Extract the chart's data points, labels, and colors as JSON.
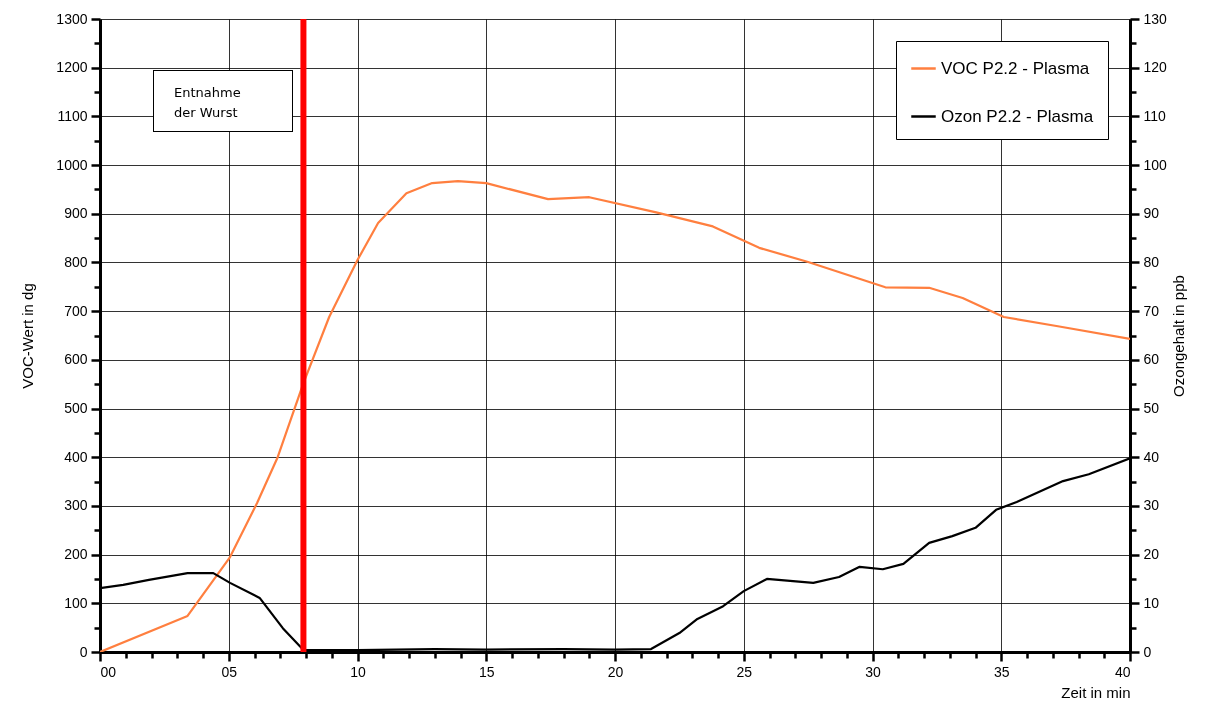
{
  "chart_data": {
    "type": "line",
    "xlabel": "Zeit in min",
    "ylabel": "VOC-Wert in dg",
    "y2label": "Ozongehalt in ppb",
    "annotations": [
      "Entnahme\nder Wurst"
    ],
    "series": [
      {
        "name": "VOC P2.2 - Plasma",
        "color": "#ff7f3f",
        "x": [
          0,
          3.4,
          5.05,
          6.1,
          6.9,
          7.9,
          8.9,
          10,
          10.8,
          11.9,
          12.9,
          13.9,
          15,
          17.4,
          19,
          21.6,
          23.8,
          25.6,
          27.5,
          30.5,
          32.2,
          33.5,
          35.1,
          37.2,
          40
        ],
        "values": [
          0,
          74,
          195,
          306,
          400,
          552,
          688,
          805,
          881,
          942,
          963,
          967,
          963,
          930,
          934,
          903,
          874,
          830,
          801,
          749,
          748,
          727,
          688,
          669,
          643
        ]
      },
      {
        "name": "Ozon P2.2 - Plasma",
        "color": "#000000",
        "axis": "y2",
        "x": [
          0,
          0.9,
          1.9,
          3.4,
          4.4,
          5.05,
          6.2,
          7.1,
          7.9,
          10,
          13,
          15,
          18,
          20,
          21.4,
          22.5,
          23.2,
          24.2,
          25,
          25.9,
          27.7,
          28.7,
          29.5,
          30.4,
          31.2,
          32.2,
          33.1,
          34,
          34.8,
          35.6,
          37.4,
          38.4,
          40
        ],
        "values": [
          13.1,
          13.8,
          14.8,
          16.2,
          16.2,
          14.2,
          11.1,
          4.9,
          0.4,
          0.4,
          0.6,
          0.5,
          0.6,
          0.5,
          0.6,
          3.9,
          6.8,
          9.4,
          12.5,
          15,
          14.2,
          15.4,
          17.5,
          17,
          18.1,
          22.4,
          23.8,
          25.5,
          29.2,
          30.8,
          35.1,
          36.5,
          39.8
        ]
      }
    ],
    "xlim": [
      0,
      40
    ],
    "xticks": [
      {
        "value": 0,
        "label": "00"
      },
      {
        "value": 1,
        "label": null
      },
      {
        "value": 2,
        "label": null
      },
      {
        "value": 3,
        "label": null
      },
      {
        "value": 4,
        "label": null
      },
      {
        "value": 5,
        "label": "05"
      },
      {
        "value": 6,
        "label": null
      },
      {
        "value": 7,
        "label": null
      },
      {
        "value": 8,
        "label": null
      },
      {
        "value": 9,
        "label": null
      },
      10,
      {
        "value": 11,
        "label": null
      },
      {
        "value": 12,
        "label": null
      },
      {
        "value": 13,
        "label": null
      },
      {
        "value": 14,
        "label": null
      },
      15,
      {
        "value": 16,
        "label": null
      },
      {
        "value": 17,
        "label": null
      },
      {
        "value": 18,
        "label": null
      },
      {
        "value": 19,
        "label": null
      },
      20,
      {
        "value": 21,
        "label": null
      },
      {
        "value": 22,
        "label": null
      },
      {
        "value": 23,
        "label": null
      },
      {
        "value": 24,
        "label": null
      },
      25,
      {
        "value": 26,
        "label": null
      },
      {
        "value": 27,
        "label": null
      },
      {
        "value": 28,
        "label": null
      },
      {
        "value": 29,
        "label": null
      },
      30,
      {
        "value": 31,
        "label": null
      },
      {
        "value": 32,
        "label": null
      },
      {
        "value": 33,
        "label": null
      },
      {
        "value": 34,
        "label": null
      },
      35,
      {
        "value": 36,
        "label": null
      },
      {
        "value": 37,
        "label": null
      },
      {
        "value": 38,
        "label": null
      },
      {
        "value": 39,
        "label": null
      },
      40
    ],
    "ylim": [
      0,
      1300
    ],
    "yticks": [
      0,
      {
        "value": 50,
        "label": null
      },
      100,
      {
        "value": 150,
        "label": null
      },
      200,
      {
        "value": 250,
        "label": null
      },
      300,
      {
        "value": 350,
        "label": null
      },
      400,
      {
        "value": 450,
        "label": null
      },
      500,
      {
        "value": 550,
        "label": null
      },
      600,
      {
        "value": 650,
        "label": null
      },
      700,
      {
        "value": 750,
        "label": null
      },
      800,
      {
        "value": 850,
        "label": null
      },
      900,
      {
        "value": 950,
        "label": null
      },
      1000,
      {
        "value": 1050,
        "label": null
      },
      1100,
      {
        "value": 1150,
        "label": null
      },
      1200,
      {
        "value": 1250,
        "label": null
      },
      1300
    ],
    "y2lim": [
      0,
      130
    ],
    "y2ticks": [
      0,
      {
        "value": 5,
        "label": null
      },
      10,
      {
        "value": 15,
        "label": null
      },
      20,
      {
        "value": 25,
        "label": null
      },
      30,
      {
        "value": 35,
        "label": null
      },
      40,
      {
        "value": 45,
        "label": null
      },
      50,
      {
        "value": 55,
        "label": null
      },
      60,
      {
        "value": 65,
        "label": null
      },
      70,
      {
        "value": 75,
        "label": null
      },
      80,
      {
        "value": 85,
        "label": null
      },
      90,
      {
        "value": 95,
        "label": null
      },
      100,
      {
        "value": 105,
        "label": null
      },
      110,
      {
        "value": 115,
        "label": null
      },
      120,
      {
        "value": 125,
        "label": null
      },
      130
    ],
    "ref_lines": [
      {
        "axis": "x",
        "value": 7.9,
        "color": "#ff0000"
      }
    ],
    "grid": true,
    "legend": "top right"
  }
}
